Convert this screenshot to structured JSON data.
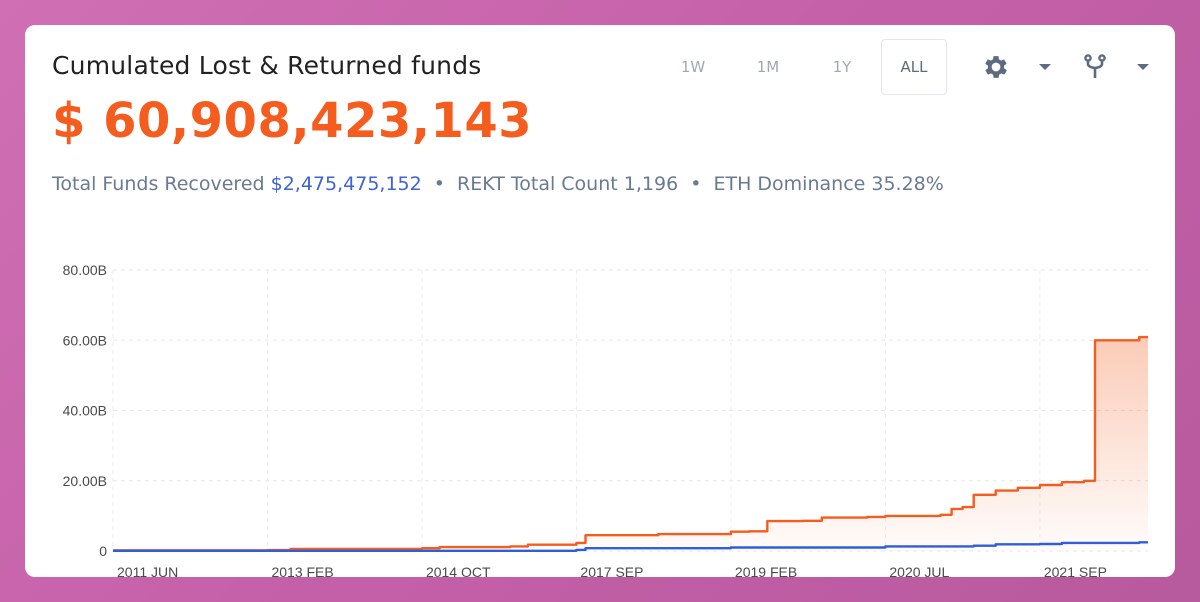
{
  "header": {
    "title": "Cumulated Lost & Returned funds",
    "total_value": "$ 60,908,423,143"
  },
  "stats": {
    "recovered_label": "Total Funds Recovered",
    "recovered_value": "$2,475,475,152",
    "rekt_label": "REKT Total Count",
    "rekt_value": "1,196",
    "eth_label": "ETH Dominance",
    "eth_value": "35.28%",
    "separator": "•"
  },
  "controls": {
    "ranges": [
      "1W",
      "1M",
      "1Y",
      "ALL"
    ],
    "active_range": "ALL",
    "icons": [
      "gear-icon",
      "caret-down-icon",
      "fork-icon",
      "caret-down-icon"
    ]
  },
  "colors": {
    "lost_series": "#f55d1f",
    "returned_series": "#2f5fd8",
    "value_text": "#f55d1f",
    "accent_text": "#3d63d6"
  },
  "chart_data": {
    "type": "area",
    "title": "",
    "xlabel": "",
    "ylabel": "",
    "ylim": [
      0,
      80000000000
    ],
    "y_ticks": [
      "0",
      "20.00B",
      "40.00B",
      "60.00B",
      "80.00B"
    ],
    "x_ticks": [
      "2011 JUN",
      "2013 FEB",
      "2014 OCT",
      "2017 SEP",
      "2019 FEB",
      "2020 JUL",
      "2021 SEP"
    ],
    "grid": true,
    "series": [
      {
        "name": "",
        "color": "#f55d1f",
        "fill": true,
        "points": [
          [
            "2011 JUN",
            0.2
          ],
          [
            "2013 FEB",
            0.25
          ],
          [
            "2013 MAY",
            0.6
          ],
          [
            "2014 OCT",
            0.8
          ],
          [
            "2015 FEB",
            1.1
          ],
          [
            "2016 JUN",
            1.3
          ],
          [
            "2016 OCT",
            1.8
          ],
          [
            "2017 SEP",
            2.3
          ],
          [
            "2017 OCT",
            4.5
          ],
          [
            "2018 JUN",
            4.8
          ],
          [
            "2019 FEB",
            5.5
          ],
          [
            "2019 APR",
            5.6
          ],
          [
            "2019 JUN",
            8.5
          ],
          [
            "2019 OCT",
            8.6
          ],
          [
            "2019 DEC",
            9.5
          ],
          [
            "2020 MAY",
            9.7
          ],
          [
            "2020 JUL",
            10.0
          ],
          [
            "2020 DEC",
            10.3
          ],
          [
            "2021 JAN",
            12.0
          ],
          [
            "2021 FEB",
            12.5
          ],
          [
            "2021 MAR",
            16.0
          ],
          [
            "2021 MAY",
            17.2
          ],
          [
            "2021 JUL",
            18.0
          ],
          [
            "2021 SEP",
            18.8
          ],
          [
            "2021 NOV",
            19.6
          ],
          [
            "2022 JAN",
            20.0
          ],
          [
            "2022 FEB",
            60.0
          ],
          [
            "2022 JUN",
            60.9
          ]
        ]
      },
      {
        "name": "",
        "color": "#2f5fd8",
        "fill": false,
        "points": [
          [
            "2011 JUN",
            0.05
          ],
          [
            "2017 SEP",
            0.3
          ],
          [
            "2017 OCT",
            0.8
          ],
          [
            "2019 FEB",
            1.0
          ],
          [
            "2020 JUL",
            1.3
          ],
          [
            "2021 MAR",
            1.5
          ],
          [
            "2021 MAY",
            1.9
          ],
          [
            "2021 SEP",
            2.0
          ],
          [
            "2021 NOV",
            2.3
          ],
          [
            "2022 JUN",
            2.48
          ]
        ]
      }
    ],
    "value_unit": "billions"
  }
}
